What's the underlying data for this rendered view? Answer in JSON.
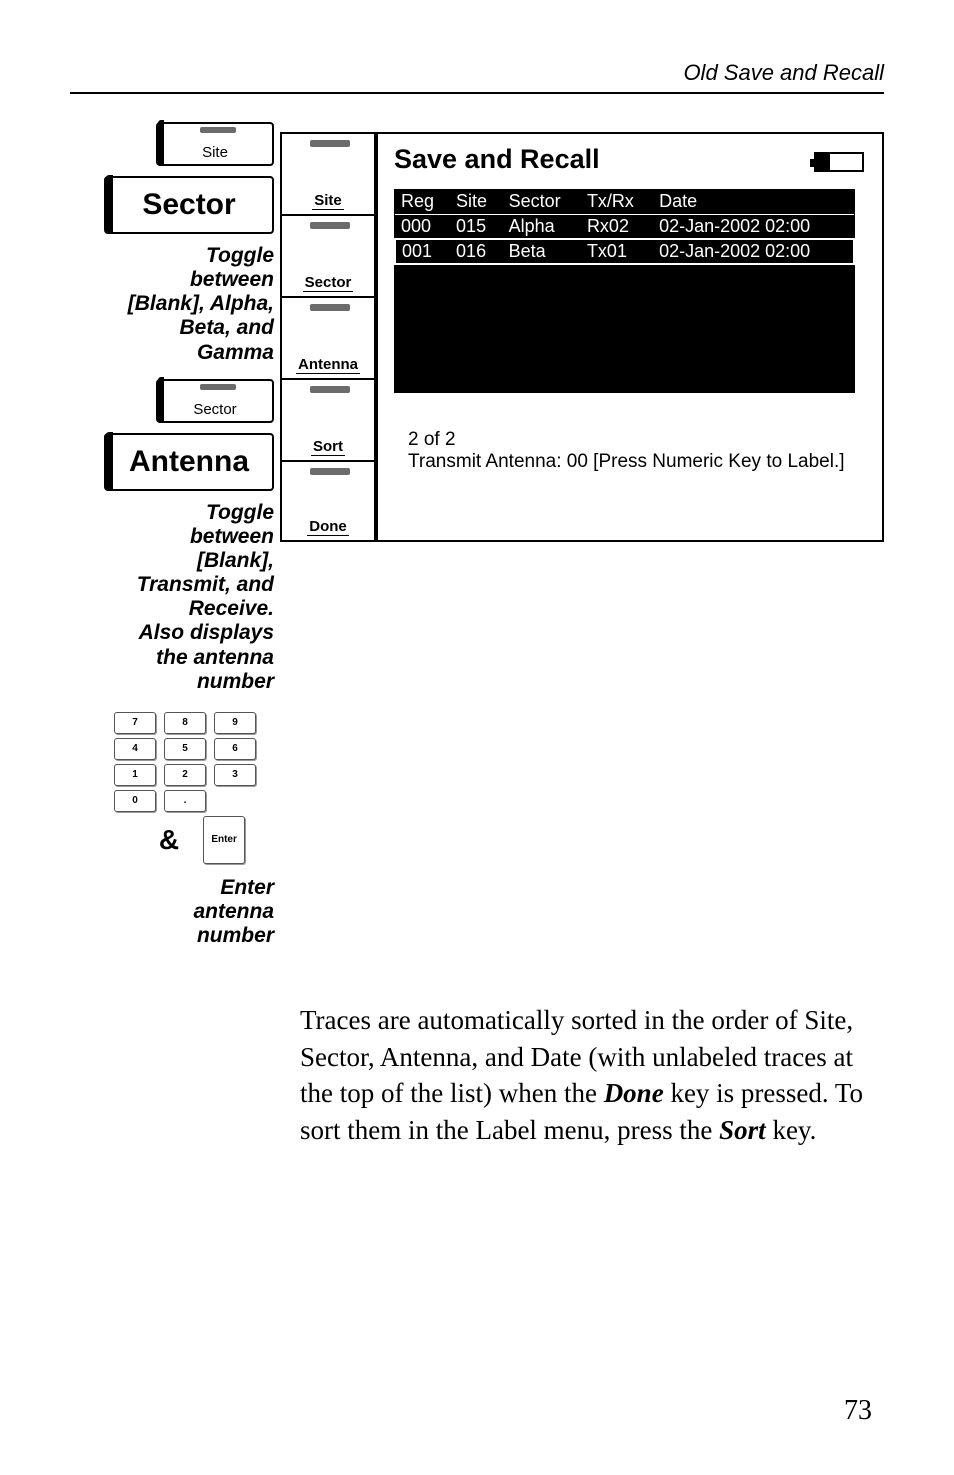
{
  "header": {
    "title": "Old Save and Recall"
  },
  "left": {
    "mini_site": "Site",
    "big_sector": "Sector",
    "caption_sector": "Toggle\nbetween\n[Blank], Alpha,\nBeta, and\nGamma",
    "mini_sector": "Sector",
    "big_antenna": "Antenna",
    "caption_antenna": "Toggle\nbetween\n[Blank],\nTransmit, and\nReceive.\nAlso displays\nthe antenna\nnumber",
    "keypad": {
      "row1": [
        "7",
        "8",
        "9"
      ],
      "row2": [
        "4",
        "5",
        "6"
      ],
      "row3": [
        "1",
        "2",
        "3"
      ],
      "row4": [
        "0",
        "."
      ],
      "enter": "Enter",
      "amp": "&"
    },
    "caption_keypad": "Enter\nantenna\nnumber"
  },
  "softkeys": [
    "Site",
    "Sector",
    "Antenna",
    "Sort",
    "Done"
  ],
  "screen": {
    "title": "Save and Recall",
    "columns": [
      "Reg",
      "Site",
      "Sector",
      "Tx/Rx",
      "Date"
    ],
    "rows": [
      {
        "reg": "000",
        "site": "015",
        "sector": "Alpha",
        "txrx": "Rx02",
        "date": "02-Jan-2002 02:00",
        "sel": false
      },
      {
        "reg": "001",
        "site": "016",
        "sector": "Beta",
        "txrx": "Tx01",
        "date": "02-Jan-2002 02:00",
        "sel": true
      }
    ],
    "footer_count": "2 of 2",
    "footer_msg": "Transmit Antenna: 00 [Press Numeric Key to Label.]"
  },
  "paragraph": {
    "pre": "Traces are automatically sorted in the order of Site, Sector, Antenna, and Date (with unlabeled traces at the top of the list) when the ",
    "key1": "Done",
    "mid": " key is pressed. To sort them in the Label menu, press the ",
    "key2": "Sort",
    "post": " key."
  },
  "page_number": "73",
  "colors": {
    "text": "#000000",
    "bg": "#ffffff",
    "panel": "#000000",
    "tab": "#6b6b6b"
  }
}
